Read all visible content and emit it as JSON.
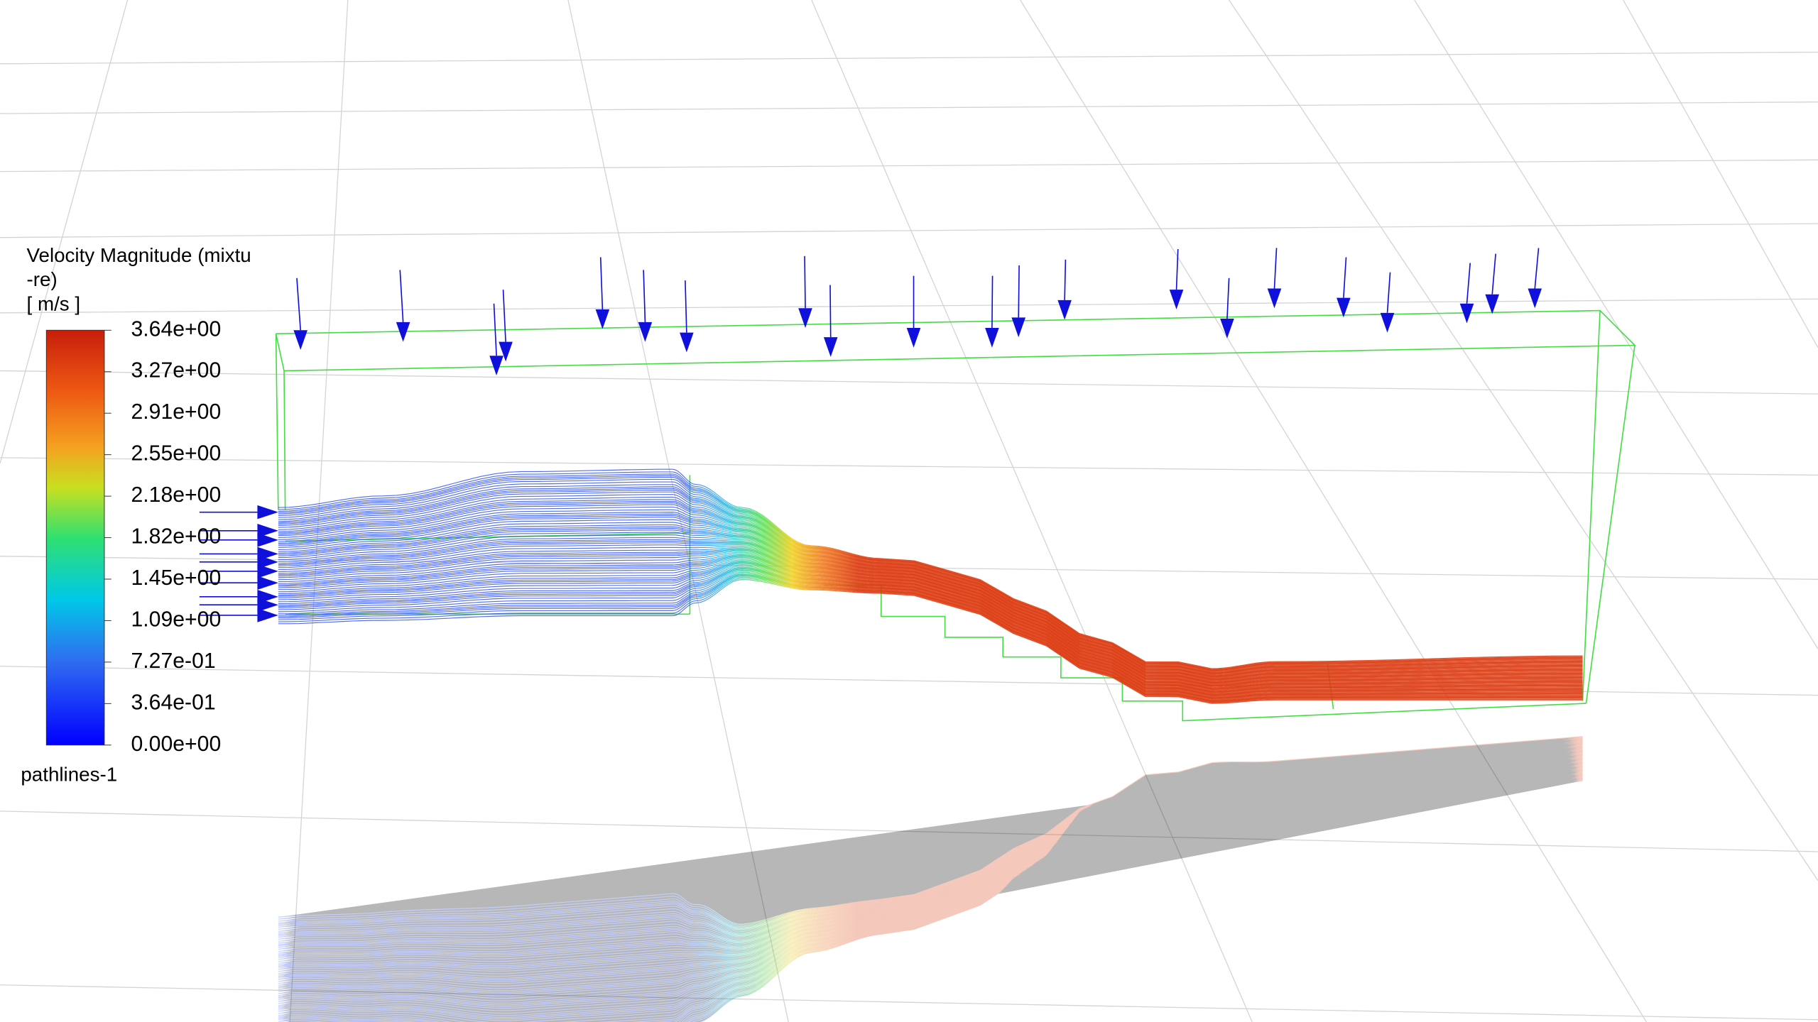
{
  "legend": {
    "title_lines": [
      "Velocity Magnitude (mixtu",
      "-re)"
    ],
    "unit": "[ m/s ]",
    "ticks": [
      "3.64e+00",
      "3.27e+00",
      "2.91e+00",
      "2.55e+00",
      "2.18e+00",
      "1.82e+00",
      "1.45e+00",
      "1.09e+00",
      "7.27e-01",
      "3.64e-01",
      "0.00e+00"
    ]
  },
  "object_name": "pathlines-1"
}
